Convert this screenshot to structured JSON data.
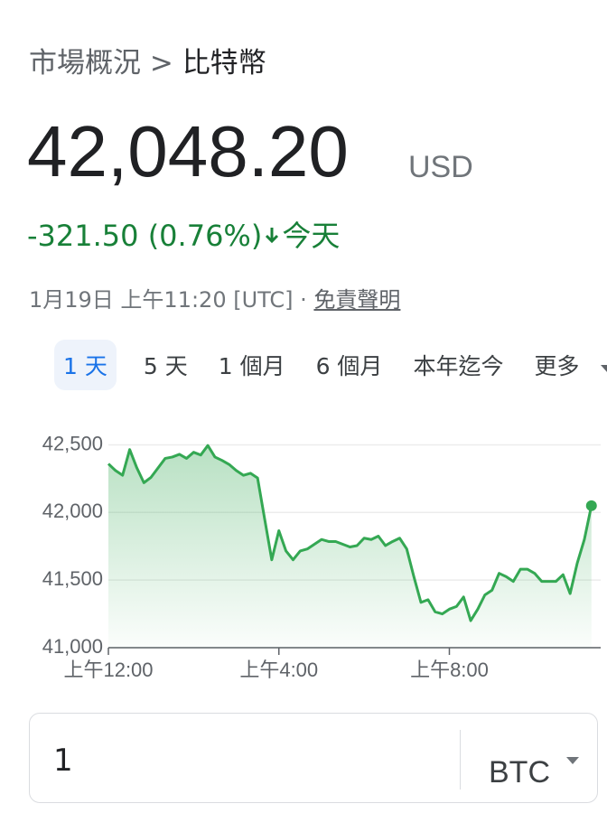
{
  "breadcrumb": {
    "parent": "市場概況",
    "separator": ">",
    "current": "比特幣"
  },
  "price": {
    "value": "42,048.20",
    "currency": "USD"
  },
  "change": {
    "text": "-321.50 (0.76%)",
    "period": "今天"
  },
  "timestamp": "1月19日 上午11:20 [UTC] ·",
  "disclaimer": "免責聲明",
  "ranges": [
    "1 天",
    "5 天",
    "1 個月",
    "6 個月",
    "本年迄今",
    "更多"
  ],
  "chart_data": {
    "type": "line",
    "color": "#34a853",
    "x": [
      0,
      0.167,
      0.333,
      0.5,
      0.667,
      0.833,
      1,
      1.167,
      1.333,
      1.5,
      1.667,
      1.833,
      2,
      2.167,
      2.333,
      2.5,
      2.667,
      2.833,
      3,
      3.167,
      3.333,
      3.5,
      3.667,
      3.833,
      4,
      4.167,
      4.333,
      4.5,
      4.667,
      4.833,
      5,
      5.167,
      5.333,
      5.5,
      5.667,
      5.833,
      6,
      6.167,
      6.333,
      6.5,
      6.667,
      6.833,
      7,
      7.167,
      7.333,
      7.5,
      7.667,
      7.833,
      8,
      8.167,
      8.333,
      8.5,
      8.667,
      8.833,
      9,
      9.167,
      9.333,
      9.5,
      9.667,
      9.833,
      10,
      10.167,
      10.333,
      10.5,
      10.667,
      10.833,
      11,
      11.167,
      11.333
    ],
    "values": [
      42360,
      42310,
      42275,
      42465,
      42330,
      42220,
      42260,
      42330,
      42400,
      42410,
      42430,
      42400,
      42445,
      42425,
      42495,
      42410,
      42385,
      42355,
      42310,
      42275,
      42290,
      42255,
      41950,
      41650,
      41865,
      41715,
      41650,
      41715,
      41730,
      41765,
      41800,
      41785,
      41785,
      41765,
      41745,
      41755,
      41810,
      41800,
      41825,
      41755,
      41785,
      41810,
      41730,
      41525,
      41335,
      41355,
      41265,
      41250,
      41285,
      41305,
      41375,
      41200,
      41285,
      41390,
      41425,
      41550,
      41525,
      41490,
      41580,
      41580,
      41550,
      41490,
      41490,
      41490,
      41540,
      41400,
      41625,
      41800,
      42050
    ],
    "xlim": [
      0,
      11.55
    ],
    "xticks": [
      {
        "value": 0,
        "label": "上午12:00"
      },
      {
        "value": 4,
        "label": "上午4:00"
      },
      {
        "value": 8,
        "label": "上午8:00"
      }
    ],
    "ylim": [
      41000,
      42650
    ],
    "yticks": [
      {
        "value": 41000,
        "label": "41,000"
      },
      {
        "value": 41500,
        "label": "41,500"
      },
      {
        "value": 42000,
        "label": "42,000"
      },
      {
        "value": 42500,
        "label": "42,500"
      }
    ],
    "grid": true
  },
  "converter": {
    "amount": "1",
    "unit": "BTC"
  }
}
